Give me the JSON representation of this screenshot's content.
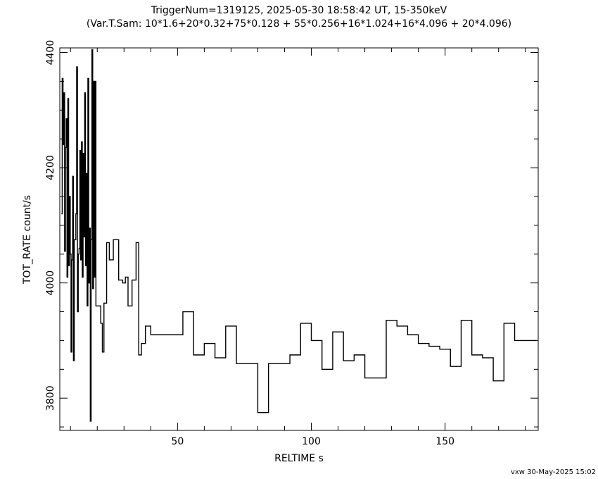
{
  "chart_data": {
    "type": "line",
    "title": "TriggerNum=1319125, 2025-05-30 18:58:42 UT, 15-350keV",
    "subtitle": "(Var.T.Sam: 10*1.6+20*0.32+75*0.128  +  55*0.256+16*1.024+16*4.096  +  20*4.096)",
    "xlabel": "RELTIME  s",
    "ylabel": "TOT_RATE  count/s",
    "xlim": [
      6,
      184.8
    ],
    "ylim": [
      3744,
      4408
    ],
    "x_ticks": [
      50,
      100,
      150
    ],
    "y_ticks": [
      3800,
      4000,
      4200,
      4400
    ],
    "grid": false,
    "series": [
      {
        "style": "step",
        "x": [
          6.6,
          6.9,
          7.2,
          7.5,
          7.8,
          8.1,
          8.4,
          8.7,
          9.0,
          9.3,
          9.6,
          9.9,
          10.2,
          10.5,
          10.8,
          11.1,
          11.4,
          11.7,
          12.0,
          12.3,
          12.6,
          12.9,
          13.2,
          13.5,
          13.8,
          14.1,
          14.4,
          14.7,
          15.0,
          15.3,
          15.6,
          15.9,
          16.2,
          16.5,
          16.8,
          17.1,
          17.4,
          17.7,
          18.0,
          18.3,
          18.6,
          18.9,
          19.2,
          19.5,
          19.8,
          20.1,
          20.4,
          20.7,
          21.0,
          21.3,
          21.6,
          21.9,
          22.2,
          22.5,
          23.5,
          24.5,
          26.0,
          28.0,
          29.5,
          30.5,
          31.5,
          33.0,
          34.5,
          35.5,
          36.5,
          38.0,
          40.0,
          44.0,
          52.0,
          56.0,
          60.0,
          64.0,
          68.0,
          72.0,
          76.0,
          80.0,
          84.0,
          88.0,
          92.0,
          96.0,
          100.0,
          104.0,
          108.0,
          112.0,
          116.0,
          120.0,
          124.0,
          128.0,
          132.0,
          136.0,
          140.0,
          144.0,
          148.0,
          152.0,
          156.0,
          160.0,
          164.0,
          168.0,
          172.0,
          176.0,
          180.0,
          184.0
        ],
        "values": [
          4120,
          4355,
          4240,
          4330,
          4055,
          4235,
          4285,
          4010,
          4320,
          4030,
          4150,
          4050,
          3880,
          4040,
          4185,
          3865,
          4075,
          4075,
          4120,
          4375,
          3950,
          4050,
          4060,
          4230,
          4040,
          4245,
          4010,
          4225,
          4080,
          4330,
          4030,
          4190,
          3960,
          4355,
          4000,
          4095,
          3760,
          4075,
          4405,
          3990,
          4350,
          4010,
          4350,
          3960,
          3960,
          3960,
          3960,
          3960,
          3960,
          3930,
          3930,
          3880,
          3880,
          3965,
          4070,
          4040,
          4075,
          4005,
          4000,
          4010,
          3960,
          4005,
          4070,
          3875,
          3895,
          3925,
          3910,
          3910,
          3950,
          3875,
          3895,
          3870,
          3925,
          3860,
          3860,
          3775,
          3860,
          3860,
          3875,
          3930,
          3900,
          3850,
          3915,
          3865,
          3875,
          3835,
          3835,
          3935,
          3925,
          3910,
          3895,
          3890,
          3885,
          3855,
          3935,
          3875,
          3870,
          3830,
          3930,
          3900,
          3900,
          3900
        ]
      }
    ]
  },
  "footer": "vxw 30-May-2025 15:02"
}
